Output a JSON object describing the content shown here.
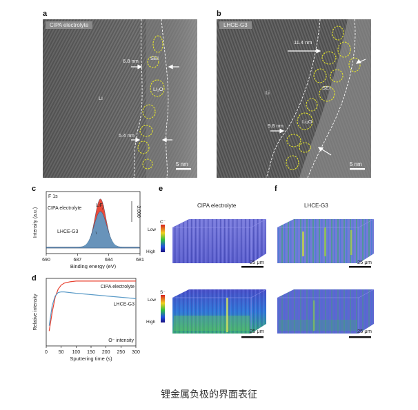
{
  "panel_a": {
    "letter": "a",
    "tag": "CIPA electrolyte",
    "labels": {
      "thick_top": "6.8 nm",
      "thick_bottom": "5.4 nm",
      "sei": "SEI",
      "li2o": "Li₂O",
      "li": "Li"
    },
    "scale": "5 nm"
  },
  "panel_b": {
    "letter": "b",
    "tag": "LHCE-G3",
    "labels": {
      "thick_top": "11.4 nm",
      "thick_bottom": "9.8 nm",
      "sei": "SEI",
      "li2o": "Li₂O",
      "li": "Li"
    },
    "scale": "5 nm"
  },
  "panel_c": {
    "letter": "c",
    "chart_data": {
      "type": "area",
      "title": "F 1s",
      "xlabel": "Binding energy (eV)",
      "ylabel": "Intensity (a.u.)",
      "x_ticks": [
        690,
        687,
        684,
        681
      ],
      "xlim": [
        690,
        681
      ],
      "scale_label": "3,000",
      "series": [
        {
          "name": "CIPA electrolyte",
          "color": "#e8412f",
          "peak_x": 684.8,
          "peak_y": 1.0,
          "width": 0.75
        },
        {
          "name": "LHCE-G3",
          "color": "#5b9bc8",
          "peak_x": 684.8,
          "peak_y": 0.74,
          "width": 0.85
        }
      ],
      "annotations": [
        "LiF",
        "CIPA electrolyte",
        "LHCE-G3"
      ]
    }
  },
  "panel_d": {
    "letter": "d",
    "chart_data": {
      "type": "line",
      "xlabel": "Sputtering time (s)",
      "ylabel": "Relative intensity",
      "x_ticks": [
        0,
        50,
        100,
        150,
        200,
        250,
        300
      ],
      "xlim": [
        0,
        300
      ],
      "ylim": [
        0,
        1
      ],
      "legend_text": "O⁻ intensity",
      "series": [
        {
          "name": "CIPA electrolyte",
          "color": "#e8412f",
          "x": [
            10,
            20,
            30,
            40,
            50,
            60,
            80,
            100,
            150,
            200,
            250,
            300
          ],
          "y": [
            0.22,
            0.5,
            0.72,
            0.84,
            0.9,
            0.93,
            0.95,
            0.96,
            0.96,
            0.96,
            0.96,
            0.96
          ]
        },
        {
          "name": "LHCE-G3",
          "color": "#5b9bc8",
          "x": [
            10,
            20,
            30,
            40,
            50,
            60,
            80,
            100,
            150,
            200,
            250,
            300
          ],
          "y": [
            0.3,
            0.6,
            0.74,
            0.79,
            0.8,
            0.8,
            0.79,
            0.78,
            0.76,
            0.74,
            0.72,
            0.7
          ]
        }
      ]
    }
  },
  "panel_e": {
    "letter": "e",
    "title": "CIPA electrolyte"
  },
  "panel_f": {
    "letter": "f",
    "title": "LHCE-G3"
  },
  "maps": {
    "row1_ion": "C⁻",
    "row2_ion": "S⁻",
    "cb_low": "Low",
    "cb_high": "High",
    "scale": "25 μm"
  },
  "caption": "锂金属负极的界面表征"
}
